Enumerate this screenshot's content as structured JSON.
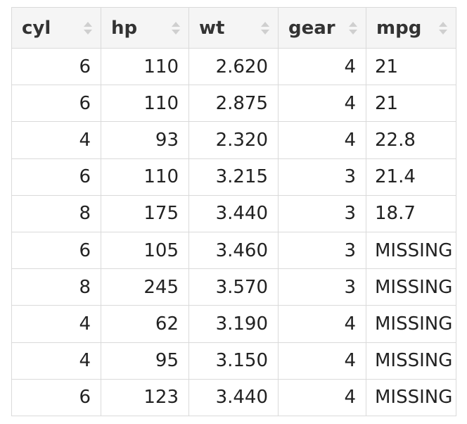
{
  "table": {
    "headers": [
      "cyl",
      "hp",
      "wt",
      "gear",
      "mpg"
    ],
    "rows": [
      [
        "6",
        "110",
        "2.620",
        "4",
        "21"
      ],
      [
        "6",
        "110",
        "2.875",
        "4",
        "21"
      ],
      [
        "4",
        "93",
        "2.320",
        "4",
        "22.8"
      ],
      [
        "6",
        "110",
        "3.215",
        "3",
        "21.4"
      ],
      [
        "8",
        "175",
        "3.440",
        "3",
        "18.7"
      ],
      [
        "6",
        "105",
        "3.460",
        "3",
        "MISSING"
      ],
      [
        "8",
        "245",
        "3.570",
        "3",
        "MISSING"
      ],
      [
        "4",
        "62",
        "3.190",
        "4",
        "MISSING"
      ],
      [
        "4",
        "95",
        "3.150",
        "4",
        "MISSING"
      ],
      [
        "6",
        "123",
        "3.440",
        "4",
        "MISSING"
      ]
    ],
    "sort_icon": "sort-up-down-icon",
    "colors": {
      "border": "#dadada",
      "header_bg": "#f5f5f5",
      "sort_icon": "#cfcfcf"
    }
  }
}
